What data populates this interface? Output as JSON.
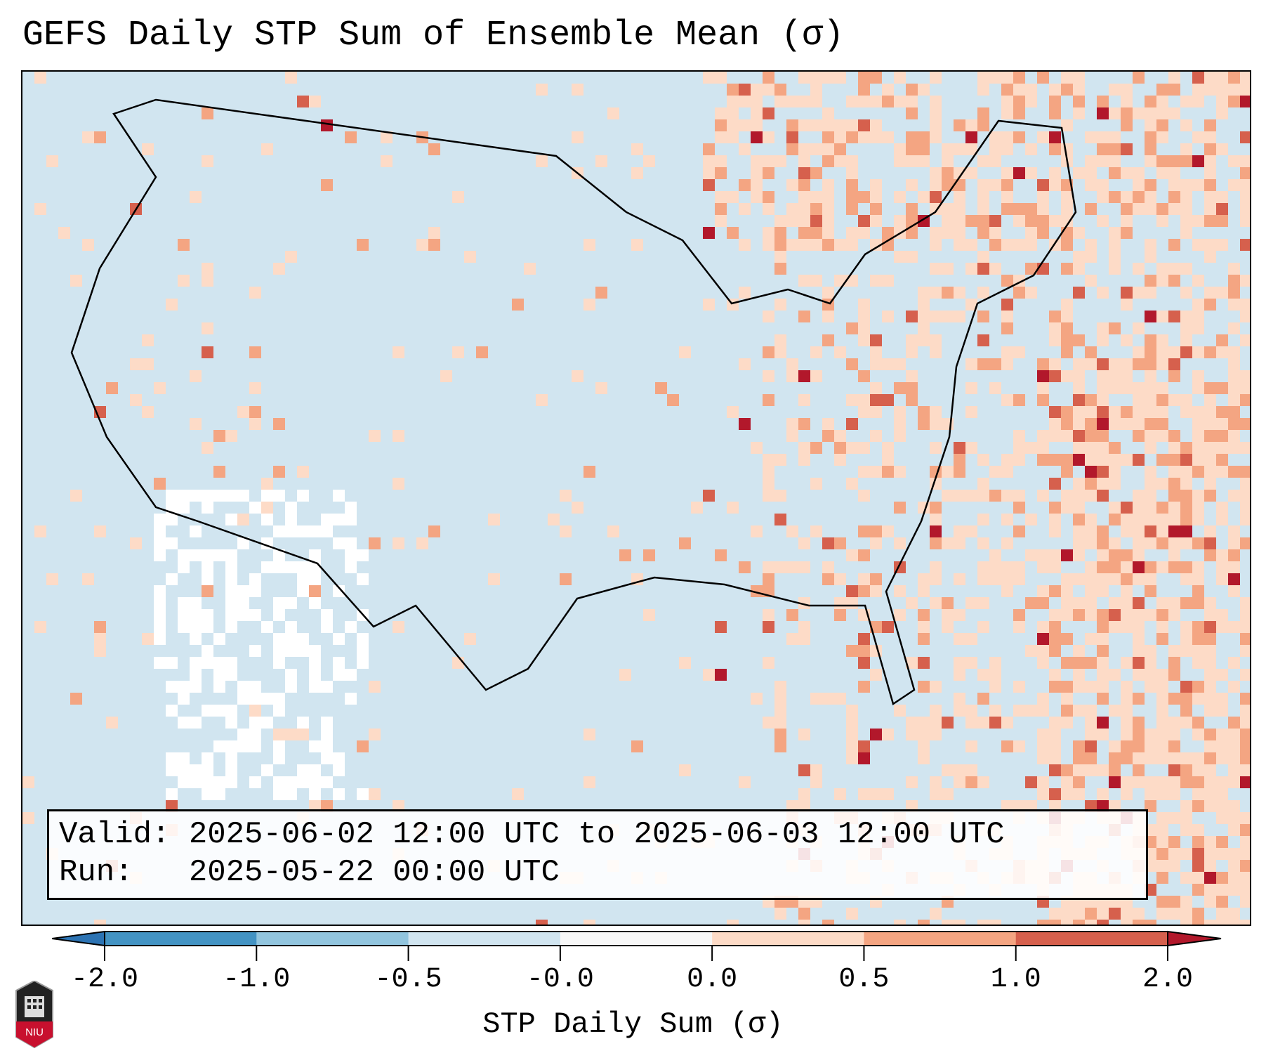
{
  "title": "GEFS Daily STP Sum of Ensemble Mean (σ)",
  "info": {
    "valid_line": "Valid: 2025-06-02 12:00 UTC to 2025-06-03 12:00 UTC",
    "run_line": "Run:   2025-05-22 00:00 UTC"
  },
  "chart_data": {
    "type": "heatmap",
    "title": "GEFS Daily STP Sum of Ensemble Mean (σ)",
    "region": "CONUS",
    "colorbar": {
      "label": "STP Daily Sum (σ)",
      "ticks": [
        "-2.0",
        "-1.0",
        "-0.5",
        "-0.0",
        "0.0",
        "0.5",
        "1.0",
        "2.0"
      ],
      "colors": [
        "#2c73b3",
        "#4393c3",
        "#92c5de",
        "#d1e5f0",
        "#f7f7f7",
        "#fddbc7",
        "#f4a582",
        "#d6604d",
        "#b2182b"
      ],
      "extend": "both"
    }
  },
  "logo": {
    "text": "NIU"
  }
}
